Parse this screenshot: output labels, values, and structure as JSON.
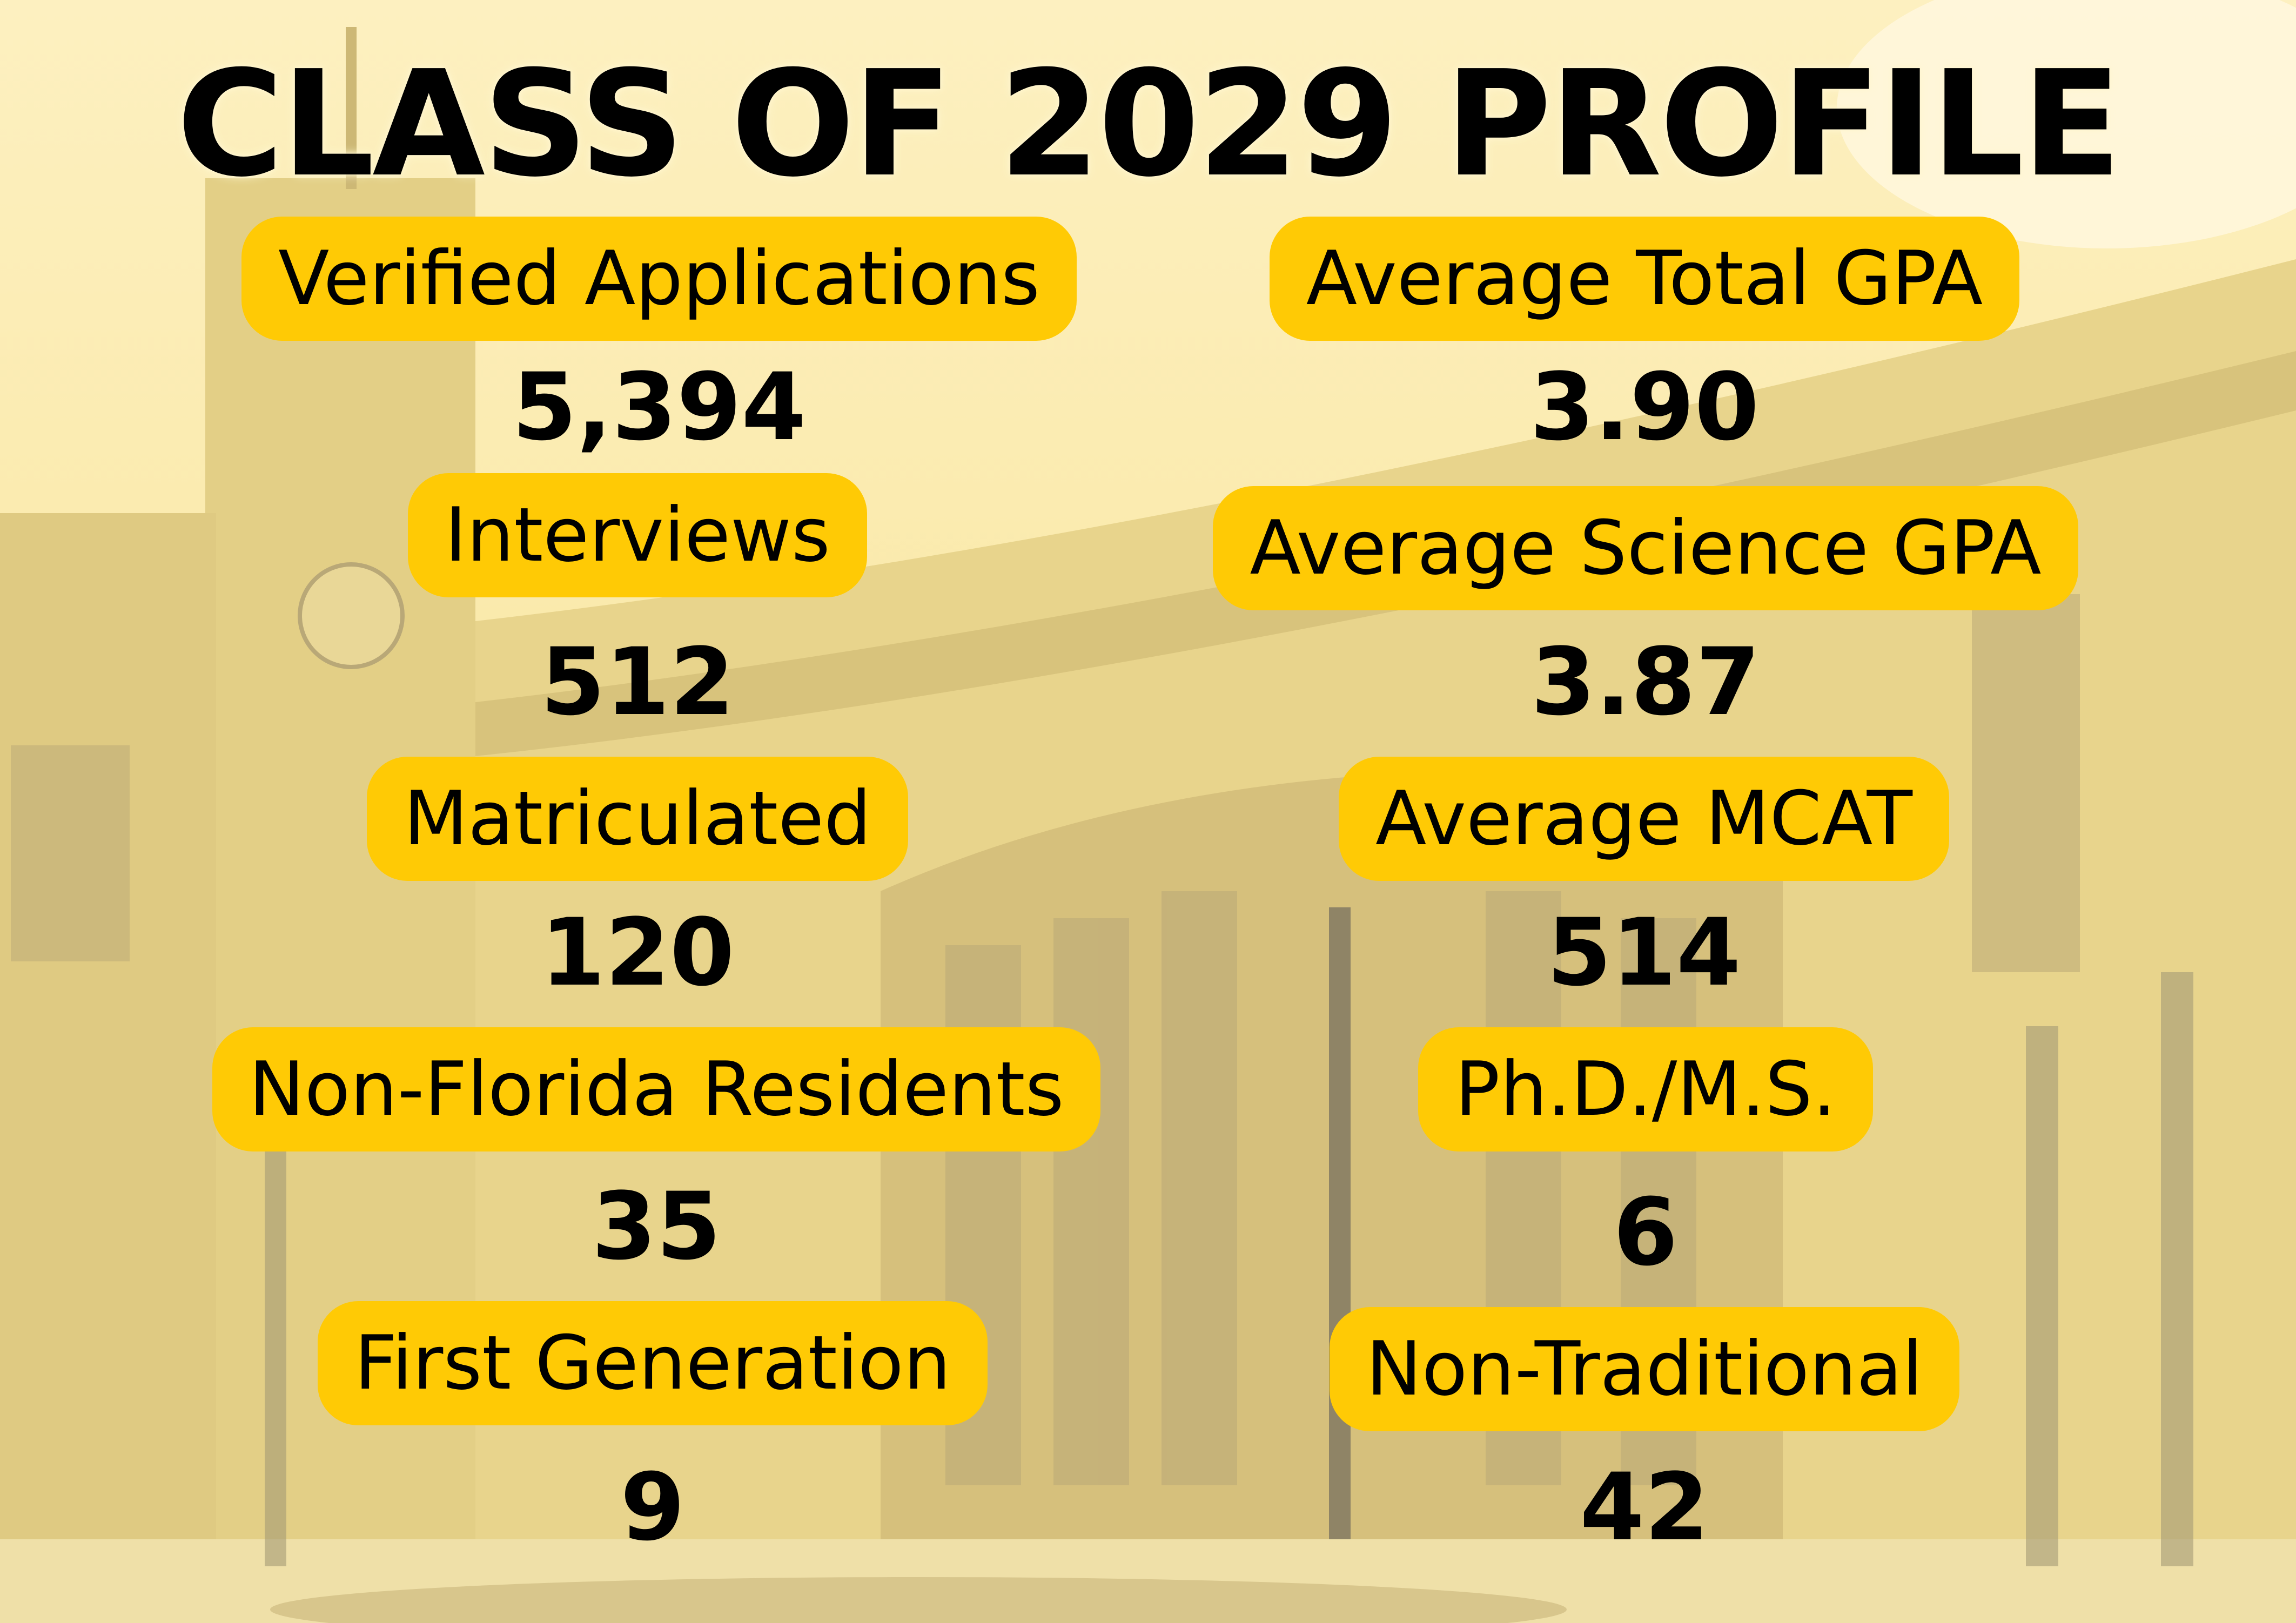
{
  "title": "CLASS OF 2029 PROFILE",
  "colors": {
    "pill": "#ffca05",
    "background": "#fbe7a0",
    "text": "#000000"
  },
  "left_stats": [
    {
      "label": "Verified Applications",
      "value": "5,394"
    },
    {
      "label": "Interviews",
      "value": "512"
    },
    {
      "label": "Matriculated",
      "value": "120"
    },
    {
      "label": "Non-Florida Residents",
      "value": "35"
    },
    {
      "label": "First Generation",
      "value": "9"
    }
  ],
  "right_stats": [
    {
      "label": "Average Total GPA",
      "value": "3.90"
    },
    {
      "label": "Average Science GPA",
      "value": "3.87"
    },
    {
      "label": "Average MCAT",
      "value": "514"
    },
    {
      "label": "Ph.D./M.S.",
      "value": "6"
    },
    {
      "label": "Non-Traditional",
      "value": "42"
    }
  ]
}
